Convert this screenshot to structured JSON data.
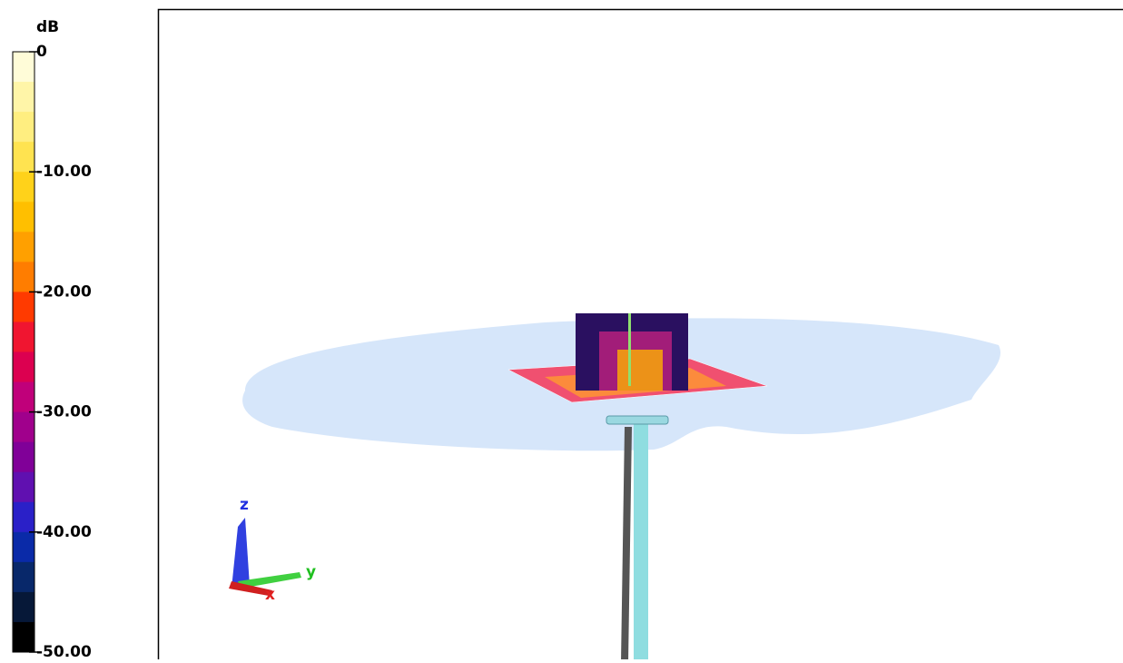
{
  "colorbar": {
    "unit": "dB",
    "lim": [
      -50,
      0
    ],
    "ticks": [
      0,
      {
        "value": -10,
        "label": "-10.00"
      },
      {
        "value": -20,
        "label": "-20.00"
      },
      {
        "value": -30,
        "label": "-30.00"
      },
      {
        "value": -40,
        "label": "-40.00"
      },
      {
        "value": -50,
        "label": "-50.00"
      }
    ],
    "colors": [
      "#fffcd8",
      "#fff5a8",
      "#ffee80",
      "#ffe350",
      "#ffd21a",
      "#ffbf00",
      "#ffa000",
      "#ff7d00",
      "#ff3a00",
      "#f01530",
      "#dc0050",
      "#c0007a",
      "#a0008c",
      "#800098",
      "#6010b0",
      "#2a20c8",
      "#0a2aa8",
      "#08286a",
      "#061838",
      "#000000"
    ]
  },
  "axes": {
    "z": "z",
    "y": "y",
    "x": "x"
  }
}
